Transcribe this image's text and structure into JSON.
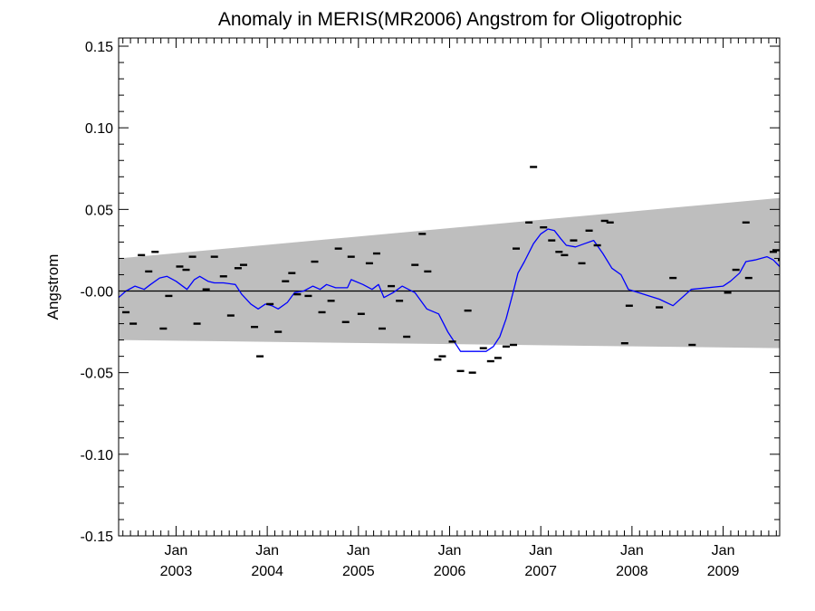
{
  "chart_data": {
    "type": "line",
    "title": "Anomaly in MERIS(MR2006) Angstrom for Oligotrophic",
    "xlabel": "",
    "ylabel": "Angstrom",
    "xlim": [
      2002.37,
      2009.62
    ],
    "ylim": [
      -0.15,
      0.155
    ],
    "grid": false,
    "y_ticks": [
      {
        "value": 0.15,
        "label": "0.15"
      },
      {
        "value": 0.1,
        "label": "0.10"
      },
      {
        "value": 0.05,
        "label": "0.05"
      },
      {
        "value": 0.0,
        "label": "-0.00"
      },
      {
        "value": -0.05,
        "label": "-0.05"
      },
      {
        "value": -0.1,
        "label": "-0.10"
      },
      {
        "value": -0.15,
        "label": "-0.15"
      }
    ],
    "x_ticks": [
      {
        "value": 2003.0,
        "month": "Jan",
        "year": "2003"
      },
      {
        "value": 2004.0,
        "month": "Jan",
        "year": "2004"
      },
      {
        "value": 2005.0,
        "month": "Jan",
        "year": "2005"
      },
      {
        "value": 2006.0,
        "month": "Jan",
        "year": "2006"
      },
      {
        "value": 2007.0,
        "month": "Jan",
        "year": "2007"
      },
      {
        "value": 2008.0,
        "month": "Jan",
        "year": "2008"
      },
      {
        "value": 2009.0,
        "month": "Jan",
        "year": "2009"
      }
    ],
    "band": {
      "x": [
        2002.37,
        2009.62
      ],
      "upper": [
        0.02,
        0.057
      ],
      "lower": [
        -0.03,
        -0.035
      ],
      "color": "#bebebe"
    },
    "zero_line": 0.0,
    "series": [
      {
        "kind": "line",
        "color": "#0000ff",
        "points": [
          [
            2002.37,
            -0.004
          ],
          [
            2002.45,
            0.0
          ],
          [
            2002.55,
            0.003
          ],
          [
            2002.65,
            0.001
          ],
          [
            2002.72,
            0.004
          ],
          [
            2002.82,
            0.008
          ],
          [
            2002.9,
            0.009
          ],
          [
            2003.0,
            0.006
          ],
          [
            2003.12,
            0.001
          ],
          [
            2003.2,
            0.007
          ],
          [
            2003.26,
            0.009
          ],
          [
            2003.35,
            0.006
          ],
          [
            2003.42,
            0.005
          ],
          [
            2003.52,
            0.005
          ],
          [
            2003.65,
            0.004
          ],
          [
            2003.72,
            -0.002
          ],
          [
            2003.82,
            -0.008
          ],
          [
            2003.9,
            -0.011
          ],
          [
            2003.98,
            -0.008
          ],
          [
            2004.05,
            -0.009
          ],
          [
            2004.12,
            -0.011
          ],
          [
            2004.22,
            -0.007
          ],
          [
            2004.3,
            -0.001
          ],
          [
            2004.4,
            0.0
          ],
          [
            2004.5,
            0.003
          ],
          [
            2004.58,
            0.001
          ],
          [
            2004.65,
            0.004
          ],
          [
            2004.75,
            0.002
          ],
          [
            2004.88,
            0.002
          ],
          [
            2004.92,
            0.007
          ],
          [
            2005.05,
            0.004
          ],
          [
            2005.15,
            0.001
          ],
          [
            2005.22,
            0.004
          ],
          [
            2005.28,
            -0.004
          ],
          [
            2005.38,
            -0.001
          ],
          [
            2005.48,
            0.003
          ],
          [
            2005.62,
            -0.001
          ],
          [
            2005.75,
            -0.011
          ],
          [
            2005.88,
            -0.014
          ],
          [
            2005.98,
            -0.025
          ],
          [
            2006.12,
            -0.037
          ],
          [
            2006.3,
            -0.037
          ],
          [
            2006.4,
            -0.037
          ],
          [
            2006.48,
            -0.034
          ],
          [
            2006.55,
            -0.028
          ],
          [
            2006.62,
            -0.017
          ],
          [
            2006.7,
            0.0
          ],
          [
            2006.75,
            0.011
          ],
          [
            2006.82,
            0.018
          ],
          [
            2006.92,
            0.029
          ],
          [
            2007.0,
            0.035
          ],
          [
            2007.08,
            0.038
          ],
          [
            2007.15,
            0.037
          ],
          [
            2007.22,
            0.032
          ],
          [
            2007.28,
            0.028
          ],
          [
            2007.38,
            0.027
          ],
          [
            2007.48,
            0.029
          ],
          [
            2007.58,
            0.031
          ],
          [
            2007.68,
            0.023
          ],
          [
            2007.78,
            0.014
          ],
          [
            2007.88,
            0.01
          ],
          [
            2007.96,
            0.001
          ],
          [
            2008.3,
            -0.005
          ],
          [
            2008.45,
            -0.009
          ],
          [
            2008.65,
            0.001
          ],
          [
            2009.0,
            0.003
          ],
          [
            2009.08,
            0.006
          ],
          [
            2009.18,
            0.011
          ],
          [
            2009.25,
            0.018
          ],
          [
            2009.35,
            0.019
          ],
          [
            2009.48,
            0.021
          ],
          [
            2009.55,
            0.019
          ],
          [
            2009.62,
            0.015
          ]
        ]
      },
      {
        "kind": "markers",
        "color": "#000000",
        "points": [
          [
            2002.45,
            -0.013
          ],
          [
            2002.53,
            -0.02
          ],
          [
            2002.62,
            0.022
          ],
          [
            2002.7,
            0.012
          ],
          [
            2002.77,
            0.024
          ],
          [
            2002.86,
            -0.023
          ],
          [
            2002.92,
            -0.003
          ],
          [
            2003.04,
            0.015
          ],
          [
            2003.11,
            0.013
          ],
          [
            2003.18,
            0.021
          ],
          [
            2003.23,
            -0.02
          ],
          [
            2003.33,
            0.001
          ],
          [
            2003.42,
            0.021
          ],
          [
            2003.52,
            0.009
          ],
          [
            2003.6,
            -0.015
          ],
          [
            2003.68,
            0.014
          ],
          [
            2003.74,
            0.016
          ],
          [
            2003.86,
            -0.022
          ],
          [
            2003.92,
            -0.04
          ],
          [
            2004.03,
            -0.008
          ],
          [
            2004.12,
            -0.025
          ],
          [
            2004.2,
            0.006
          ],
          [
            2004.27,
            0.011
          ],
          [
            2004.33,
            -0.002
          ],
          [
            2004.45,
            -0.003
          ],
          [
            2004.52,
            0.018
          ],
          [
            2004.6,
            -0.013
          ],
          [
            2004.7,
            -0.006
          ],
          [
            2004.78,
            0.026
          ],
          [
            2004.86,
            -0.019
          ],
          [
            2004.92,
            0.021
          ],
          [
            2005.03,
            -0.014
          ],
          [
            2005.12,
            0.017
          ],
          [
            2005.2,
            0.023
          ],
          [
            2005.26,
            -0.023
          ],
          [
            2005.36,
            0.003
          ],
          [
            2005.45,
            -0.006
          ],
          [
            2005.53,
            -0.028
          ],
          [
            2005.62,
            0.016
          ],
          [
            2005.7,
            0.035
          ],
          [
            2005.76,
            0.012
          ],
          [
            2005.87,
            -0.042
          ],
          [
            2005.92,
            -0.04
          ],
          [
            2006.03,
            -0.031
          ],
          [
            2006.12,
            -0.049
          ],
          [
            2006.2,
            -0.012
          ],
          [
            2006.25,
            -0.05
          ],
          [
            2006.37,
            -0.035
          ],
          [
            2006.45,
            -0.043
          ],
          [
            2006.53,
            -0.041
          ],
          [
            2006.62,
            -0.034
          ],
          [
            2006.7,
            -0.033
          ],
          [
            2006.73,
            0.026
          ],
          [
            2006.87,
            0.042
          ],
          [
            2006.92,
            0.076
          ],
          [
            2007.03,
            0.039
          ],
          [
            2007.12,
            0.031
          ],
          [
            2007.2,
            0.024
          ],
          [
            2007.26,
            0.022
          ],
          [
            2007.36,
            0.031
          ],
          [
            2007.45,
            0.017
          ],
          [
            2007.53,
            0.037
          ],
          [
            2007.62,
            0.028
          ],
          [
            2007.7,
            0.043
          ],
          [
            2007.76,
            0.042
          ],
          [
            2007.92,
            -0.032
          ],
          [
            2007.97,
            -0.009
          ],
          [
            2008.3,
            -0.01
          ],
          [
            2008.45,
            0.008
          ],
          [
            2008.66,
            -0.033
          ],
          [
            2009.05,
            -0.001
          ],
          [
            2009.14,
            0.013
          ],
          [
            2009.25,
            0.042
          ],
          [
            2009.28,
            0.008
          ],
          [
            2009.55,
            0.024
          ],
          [
            2009.58,
            0.025
          ],
          [
            2009.64,
            0.019
          ]
        ]
      }
    ]
  }
}
